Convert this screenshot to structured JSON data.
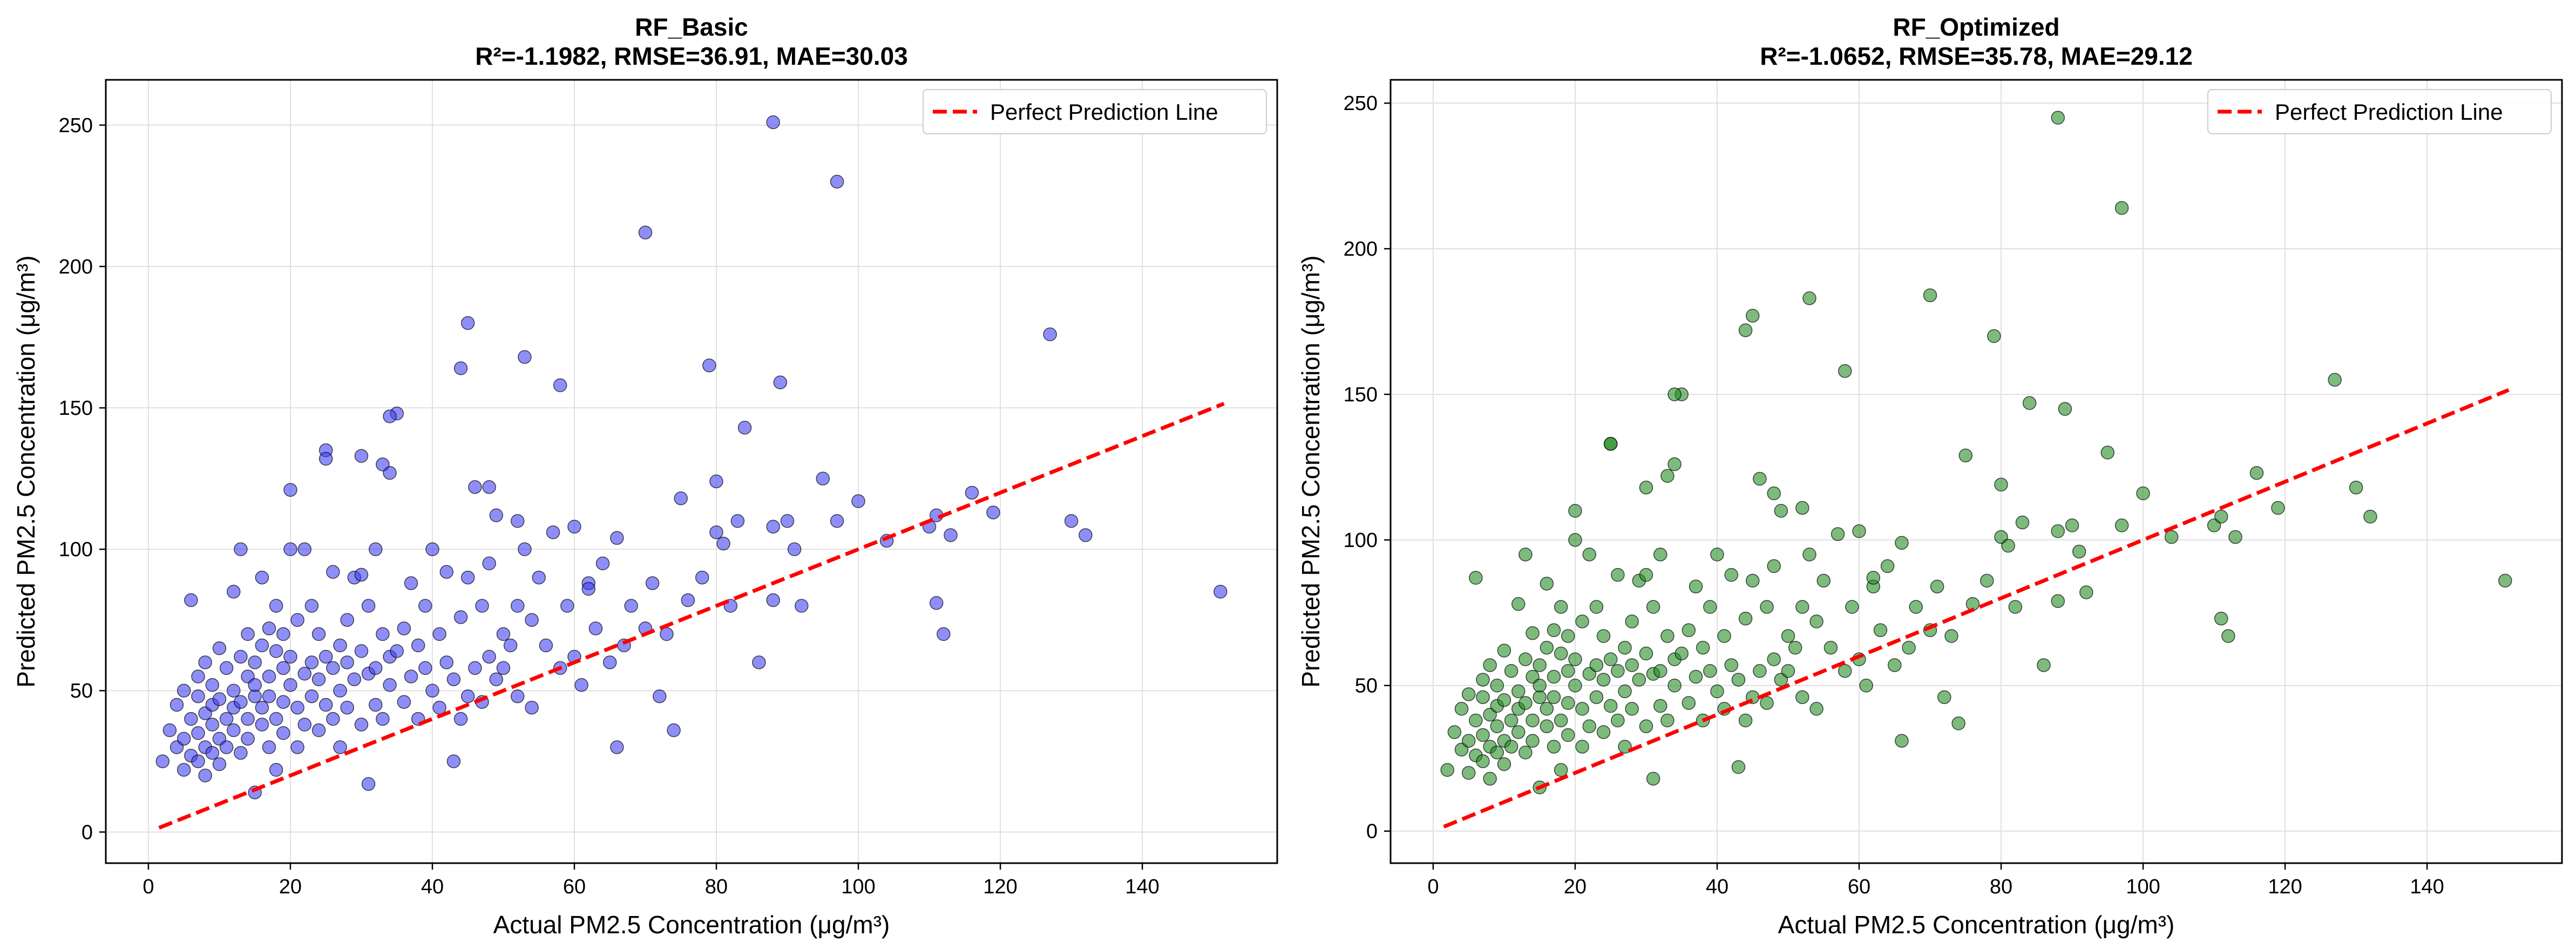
{
  "chart_data": [
    {
      "type": "scatter",
      "title": "RF_Basic",
      "subtitle": "R²=-1.1982, RMSE=36.91, MAE=30.03",
      "xlabel": "Actual PM2.5 Concentration (μg/m³)",
      "ylabel": "Predicted PM2.5 Concentration (μg/m³)",
      "xlim": [
        -6,
        159
      ],
      "ylim": [
        -11,
        266
      ],
      "xticks": [
        0,
        20,
        40,
        60,
        80,
        100,
        120,
        140
      ],
      "yticks": [
        0,
        50,
        100,
        150,
        200,
        250
      ],
      "grid": true,
      "legend": {
        "position": "top-right",
        "entries": [
          "Perfect Prediction Line"
        ]
      },
      "reference_line": {
        "name": "Perfect Prediction Line",
        "x": [
          1.5,
          151.5
        ],
        "y": [
          1.5,
          151.5
        ],
        "color": "#ff0000",
        "style": "dashed"
      },
      "point_color": "#3d3df5",
      "series": [
        {
          "x": [
            2,
            3,
            4,
            4,
            5,
            5,
            5,
            6,
            6,
            6,
            7,
            7,
            7,
            7,
            8,
            8,
            8,
            8,
            9,
            9,
            9,
            9,
            10,
            10,
            10,
            10,
            11,
            11,
            11,
            12,
            12,
            12,
            12,
            13,
            13,
            13,
            13,
            14,
            14,
            14,
            14,
            15,
            15,
            15,
            15,
            16,
            16,
            16,
            16,
            17,
            17,
            17,
            17,
            18,
            18,
            18,
            18,
            19,
            19,
            19,
            19,
            20,
            20,
            20,
            21,
            21,
            21,
            22,
            22,
            22,
            23,
            23,
            23,
            24,
            24,
            24,
            25,
            25,
            25,
            26,
            26,
            26,
            27,
            27,
            27,
            28,
            28,
            28,
            29,
            29,
            30,
            30,
            30,
            31,
            31,
            31,
            32,
            32,
            32,
            33,
            33,
            34,
            34,
            34,
            35,
            35,
            36,
            36,
            37,
            37,
            38,
            38,
            39,
            39,
            40,
            40,
            41,
            41,
            42,
            42,
            43,
            43,
            44,
            44,
            45,
            45,
            46,
            46,
            47,
            47,
            48,
            48,
            49,
            49,
            50,
            50,
            51,
            52,
            52,
            53,
            54,
            54,
            55,
            56,
            57,
            58,
            59,
            60,
            60,
            61,
            62,
            63,
            64,
            65,
            66,
            67,
            68,
            70,
            71,
            72,
            73,
            74,
            75,
            76,
            78,
            80,
            80,
            81,
            82,
            83,
            84,
            86,
            88,
            88,
            89,
            90,
            91,
            92,
            95,
            97,
            100,
            104,
            110,
            111,
            111,
            112,
            113,
            116,
            119,
            127,
            130,
            132,
            151,
            45,
            53,
            44,
            34,
            25,
            20,
            30,
            33,
            48,
            52,
            58,
            62,
            66,
            79,
            88,
            70,
            97
          ],
          "y": [
            25,
            36,
            30,
            45,
            22,
            50,
            33,
            27,
            82,
            40,
            25,
            48,
            35,
            55,
            30,
            42,
            60,
            20,
            45,
            38,
            28,
            52,
            33,
            65,
            47,
            24,
            40,
            58,
            30,
            50,
            44,
            85,
            36,
            62,
            28,
            46,
            100,
            40,
            55,
            33,
            70,
            48,
            60,
            14,
            52,
            44,
            66,
            38,
            90,
            55,
            30,
            72,
            48,
            64,
            40,
            80,
            22,
            58,
            46,
            70,
            35,
            52,
            121,
            62,
            44,
            75,
            30,
            56,
            100,
            38,
            60,
            48,
            80,
            54,
            36,
            70,
            62,
            135,
            45,
            58,
            40,
            92,
            50,
            66,
            30,
            60,
            75,
            44,
            54,
            90,
            64,
            133,
            38,
            56,
            17,
            80,
            58,
            45,
            100,
            70,
            40,
            62,
            127,
            52,
            64,
            148,
            46,
            72,
            55,
            88,
            40,
            66,
            58,
            80,
            50,
            100,
            44,
            70,
            60,
            92,
            54,
            25,
            76,
            40,
            48,
            90,
            58,
            122,
            46,
            80,
            62,
            95,
            54,
            112,
            70,
            58,
            66,
            80,
            48,
            100,
            44,
            75,
            90,
            66,
            106,
            58,
            80,
            62,
            108,
            52,
            88,
            72,
            95,
            60,
            104,
            66,
            80,
            72,
            88,
            48,
            70,
            36,
            118,
            82,
            90,
            106,
            124,
            102,
            80,
            110,
            143,
            60,
            82,
            108,
            159,
            110,
            100,
            80,
            125,
            110,
            117,
            103,
            108,
            81,
            112,
            70,
            105,
            120,
            113,
            176,
            110,
            105,
            85,
            180,
            168,
            164,
            147,
            132,
            100,
            91,
            130,
            122,
            110,
            158,
            86,
            30,
            165,
            251,
            212,
            230
          ]
        }
      ]
    },
    {
      "type": "scatter",
      "title": "RF_Optimized",
      "subtitle": "R²=-1.0652, RMSE=35.78, MAE=29.12",
      "xlabel": "Actual PM2.5 Concentration (μg/m³)",
      "ylabel": "Predicted PM2.5 Concentration (μg/m³)",
      "xlim": [
        -6,
        159
      ],
      "ylim": [
        -11,
        258
      ],
      "xticks": [
        0,
        20,
        40,
        60,
        80,
        100,
        120,
        140
      ],
      "yticks": [
        0,
        50,
        100,
        150,
        200,
        250
      ],
      "grid": true,
      "legend": {
        "position": "top-right",
        "entries": [
          "Perfect Prediction Line"
        ]
      },
      "reference_line": {
        "name": "Perfect Prediction Line",
        "x": [
          1.5,
          151.5
        ],
        "y": [
          1.5,
          151.5
        ],
        "color": "#ff0000",
        "style": "dashed"
      },
      "point_color": "#1f8a1f",
      "series": [
        {
          "x": [
            2,
            3,
            4,
            4,
            5,
            5,
            5,
            6,
            6,
            6,
            7,
            7,
            7,
            7,
            8,
            8,
            8,
            8,
            9,
            9,
            9,
            9,
            10,
            10,
            10,
            10,
            11,
            11,
            11,
            12,
            12,
            12,
            12,
            13,
            13,
            13,
            13,
            14,
            14,
            14,
            14,
            15,
            15,
            15,
            15,
            16,
            16,
            16,
            16,
            17,
            17,
            17,
            17,
            18,
            18,
            18,
            18,
            19,
            19,
            19,
            19,
            20,
            20,
            20,
            21,
            21,
            21,
            22,
            22,
            22,
            23,
            23,
            23,
            24,
            24,
            24,
            25,
            25,
            25,
            26,
            26,
            26,
            27,
            27,
            27,
            28,
            28,
            28,
            29,
            29,
            30,
            30,
            30,
            31,
            31,
            31,
            32,
            32,
            32,
            33,
            33,
            34,
            34,
            34,
            35,
            35,
            36,
            36,
            37,
            37,
            38,
            38,
            39,
            39,
            40,
            40,
            41,
            41,
            42,
            42,
            43,
            43,
            44,
            44,
            45,
            45,
            46,
            46,
            47,
            47,
            48,
            48,
            49,
            49,
            50,
            50,
            51,
            52,
            52,
            53,
            54,
            54,
            55,
            56,
            57,
            58,
            59,
            60,
            60,
            61,
            62,
            63,
            64,
            65,
            66,
            67,
            68,
            70,
            71,
            72,
            73,
            74,
            75,
            76,
            78,
            80,
            80,
            81,
            82,
            83,
            84,
            86,
            88,
            88,
            89,
            90,
            91,
            92,
            95,
            97,
            100,
            104,
            110,
            111,
            111,
            112,
            113,
            116,
            119,
            127,
            130,
            132,
            151,
            45,
            53,
            44,
            34,
            25,
            20,
            30,
            33,
            48,
            52,
            58,
            62,
            66,
            79,
            88,
            70,
            97
          ],
          "y": [
            21,
            34,
            28,
            42,
            20,
            47,
            31,
            26,
            87,
            38,
            24,
            46,
            33,
            52,
            29,
            40,
            57,
            18,
            43,
            36,
            27,
            50,
            31,
            62,
            45,
            23,
            38,
            55,
            29,
            48,
            42,
            78,
            34,
            59,
            27,
            44,
            95,
            38,
            53,
            31,
            68,
            46,
            57,
            15,
            50,
            42,
            63,
            36,
            85,
            53,
            29,
            69,
            46,
            61,
            38,
            77,
            21,
            55,
            44,
            67,
            33,
            50,
            110,
            59,
            42,
            72,
            29,
            54,
            95,
            36,
            57,
            46,
            77,
            52,
            34,
            67,
            59,
            133,
            43,
            55,
            38,
            88,
            48,
            63,
            29,
            57,
            72,
            42,
            52,
            86,
            61,
            118,
            36,
            54,
            18,
            77,
            55,
            43,
            95,
            67,
            38,
            59,
            126,
            50,
            61,
            150,
            44,
            69,
            53,
            84,
            38,
            63,
            55,
            77,
            48,
            95,
            42,
            67,
            57,
            88,
            52,
            22,
            73,
            38,
            46,
            86,
            55,
            121,
            44,
            77,
            59,
            91,
            52,
            110,
            67,
            55,
            63,
            77,
            46,
            95,
            42,
            72,
            86,
            63,
            102,
            55,
            77,
            59,
            103,
            50,
            84,
            69,
            91,
            57,
            99,
            63,
            77,
            69,
            84,
            46,
            67,
            37,
            129,
            78,
            86,
            101,
            119,
            98,
            77,
            106,
            147,
            57,
            79,
            103,
            145,
            105,
            96,
            82,
            130,
            105,
            116,
            101,
            105,
            73,
            108,
            67,
            101,
            123,
            111,
            155,
            118,
            108,
            86,
            177,
            183,
            172,
            150,
            133,
            100,
            88,
            122,
            116,
            111,
            158,
            87,
            31,
            170,
            245,
            184,
            214
          ]
        }
      ]
    }
  ]
}
